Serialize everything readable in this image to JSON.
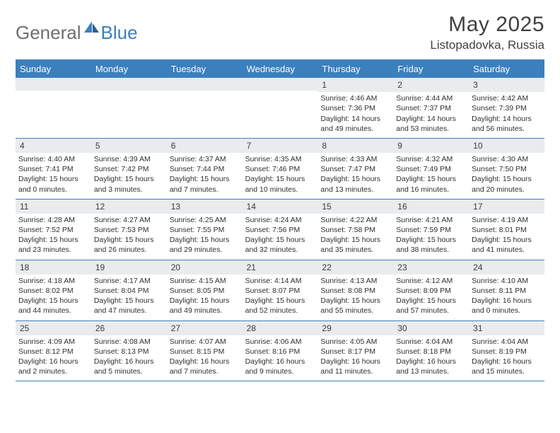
{
  "brand": {
    "word1": "General",
    "word2": "Blue"
  },
  "title": "May 2025",
  "location": "Listopadovka, Russia",
  "colors": {
    "accent": "#3b7fbd",
    "header_text": "#ffffff",
    "daybar_bg": "#e9ebed",
    "text": "#2f2f2f",
    "logo_gray": "#6e6e6e"
  },
  "weekdays": [
    "Sunday",
    "Monday",
    "Tuesday",
    "Wednesday",
    "Thursday",
    "Friday",
    "Saturday"
  ],
  "weeks": [
    [
      {
        "n": "",
        "sr": "",
        "ss": "",
        "dl": ""
      },
      {
        "n": "",
        "sr": "",
        "ss": "",
        "dl": ""
      },
      {
        "n": "",
        "sr": "",
        "ss": "",
        "dl": ""
      },
      {
        "n": "",
        "sr": "",
        "ss": "",
        "dl": ""
      },
      {
        "n": "1",
        "sr": "Sunrise: 4:46 AM",
        "ss": "Sunset: 7:36 PM",
        "dl": "Daylight: 14 hours and 49 minutes."
      },
      {
        "n": "2",
        "sr": "Sunrise: 4:44 AM",
        "ss": "Sunset: 7:37 PM",
        "dl": "Daylight: 14 hours and 53 minutes."
      },
      {
        "n": "3",
        "sr": "Sunrise: 4:42 AM",
        "ss": "Sunset: 7:39 PM",
        "dl": "Daylight: 14 hours and 56 minutes."
      }
    ],
    [
      {
        "n": "4",
        "sr": "Sunrise: 4:40 AM",
        "ss": "Sunset: 7:41 PM",
        "dl": "Daylight: 15 hours and 0 minutes."
      },
      {
        "n": "5",
        "sr": "Sunrise: 4:39 AM",
        "ss": "Sunset: 7:42 PM",
        "dl": "Daylight: 15 hours and 3 minutes."
      },
      {
        "n": "6",
        "sr": "Sunrise: 4:37 AM",
        "ss": "Sunset: 7:44 PM",
        "dl": "Daylight: 15 hours and 7 minutes."
      },
      {
        "n": "7",
        "sr": "Sunrise: 4:35 AM",
        "ss": "Sunset: 7:46 PM",
        "dl": "Daylight: 15 hours and 10 minutes."
      },
      {
        "n": "8",
        "sr": "Sunrise: 4:33 AM",
        "ss": "Sunset: 7:47 PM",
        "dl": "Daylight: 15 hours and 13 minutes."
      },
      {
        "n": "9",
        "sr": "Sunrise: 4:32 AM",
        "ss": "Sunset: 7:49 PM",
        "dl": "Daylight: 15 hours and 16 minutes."
      },
      {
        "n": "10",
        "sr": "Sunrise: 4:30 AM",
        "ss": "Sunset: 7:50 PM",
        "dl": "Daylight: 15 hours and 20 minutes."
      }
    ],
    [
      {
        "n": "11",
        "sr": "Sunrise: 4:28 AM",
        "ss": "Sunset: 7:52 PM",
        "dl": "Daylight: 15 hours and 23 minutes."
      },
      {
        "n": "12",
        "sr": "Sunrise: 4:27 AM",
        "ss": "Sunset: 7:53 PM",
        "dl": "Daylight: 15 hours and 26 minutes."
      },
      {
        "n": "13",
        "sr": "Sunrise: 4:25 AM",
        "ss": "Sunset: 7:55 PM",
        "dl": "Daylight: 15 hours and 29 minutes."
      },
      {
        "n": "14",
        "sr": "Sunrise: 4:24 AM",
        "ss": "Sunset: 7:56 PM",
        "dl": "Daylight: 15 hours and 32 minutes."
      },
      {
        "n": "15",
        "sr": "Sunrise: 4:22 AM",
        "ss": "Sunset: 7:58 PM",
        "dl": "Daylight: 15 hours and 35 minutes."
      },
      {
        "n": "16",
        "sr": "Sunrise: 4:21 AM",
        "ss": "Sunset: 7:59 PM",
        "dl": "Daylight: 15 hours and 38 minutes."
      },
      {
        "n": "17",
        "sr": "Sunrise: 4:19 AM",
        "ss": "Sunset: 8:01 PM",
        "dl": "Daylight: 15 hours and 41 minutes."
      }
    ],
    [
      {
        "n": "18",
        "sr": "Sunrise: 4:18 AM",
        "ss": "Sunset: 8:02 PM",
        "dl": "Daylight: 15 hours and 44 minutes."
      },
      {
        "n": "19",
        "sr": "Sunrise: 4:17 AM",
        "ss": "Sunset: 8:04 PM",
        "dl": "Daylight: 15 hours and 47 minutes."
      },
      {
        "n": "20",
        "sr": "Sunrise: 4:15 AM",
        "ss": "Sunset: 8:05 PM",
        "dl": "Daylight: 15 hours and 49 minutes."
      },
      {
        "n": "21",
        "sr": "Sunrise: 4:14 AM",
        "ss": "Sunset: 8:07 PM",
        "dl": "Daylight: 15 hours and 52 minutes."
      },
      {
        "n": "22",
        "sr": "Sunrise: 4:13 AM",
        "ss": "Sunset: 8:08 PM",
        "dl": "Daylight: 15 hours and 55 minutes."
      },
      {
        "n": "23",
        "sr": "Sunrise: 4:12 AM",
        "ss": "Sunset: 8:09 PM",
        "dl": "Daylight: 15 hours and 57 minutes."
      },
      {
        "n": "24",
        "sr": "Sunrise: 4:10 AM",
        "ss": "Sunset: 8:11 PM",
        "dl": "Daylight: 16 hours and 0 minutes."
      }
    ],
    [
      {
        "n": "25",
        "sr": "Sunrise: 4:09 AM",
        "ss": "Sunset: 8:12 PM",
        "dl": "Daylight: 16 hours and 2 minutes."
      },
      {
        "n": "26",
        "sr": "Sunrise: 4:08 AM",
        "ss": "Sunset: 8:13 PM",
        "dl": "Daylight: 16 hours and 5 minutes."
      },
      {
        "n": "27",
        "sr": "Sunrise: 4:07 AM",
        "ss": "Sunset: 8:15 PM",
        "dl": "Daylight: 16 hours and 7 minutes."
      },
      {
        "n": "28",
        "sr": "Sunrise: 4:06 AM",
        "ss": "Sunset: 8:16 PM",
        "dl": "Daylight: 16 hours and 9 minutes."
      },
      {
        "n": "29",
        "sr": "Sunrise: 4:05 AM",
        "ss": "Sunset: 8:17 PM",
        "dl": "Daylight: 16 hours and 11 minutes."
      },
      {
        "n": "30",
        "sr": "Sunrise: 4:04 AM",
        "ss": "Sunset: 8:18 PM",
        "dl": "Daylight: 16 hours and 13 minutes."
      },
      {
        "n": "31",
        "sr": "Sunrise: 4:04 AM",
        "ss": "Sunset: 8:19 PM",
        "dl": "Daylight: 16 hours and 15 minutes."
      }
    ]
  ]
}
